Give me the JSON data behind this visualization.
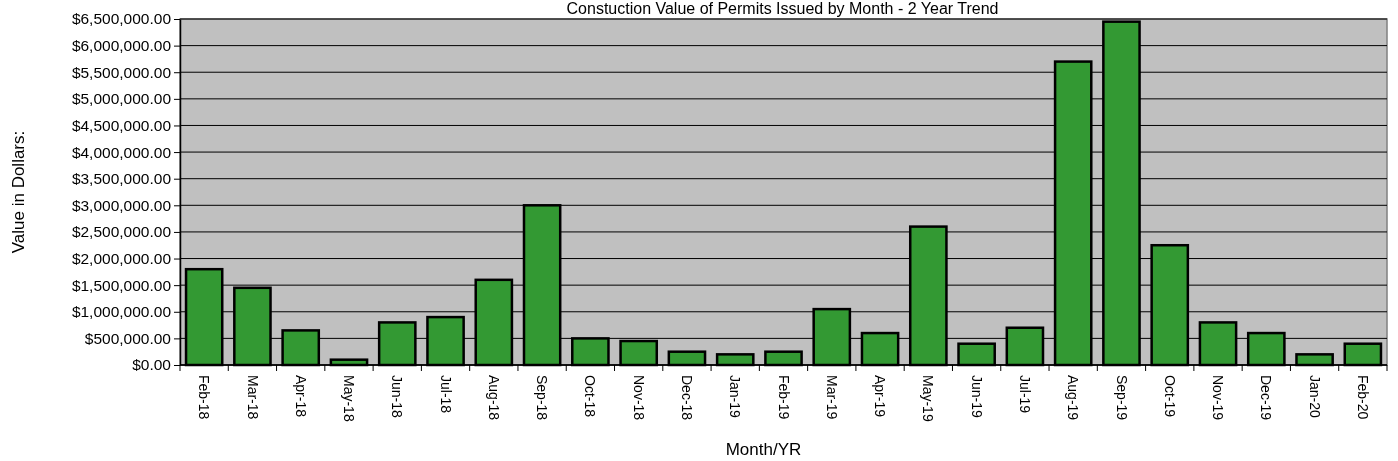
{
  "chart_data": {
    "type": "bar",
    "title": "Constuction Value of Permits Issued by Month - 2 Year Trend",
    "xlabel": "Month/YR",
    "ylabel": "Value in Dollars:",
    "categories": [
      "Feb-18",
      "Mar-18",
      "Apr-18",
      "May-18",
      "Jun-18",
      "Jul-18",
      "Aug-18",
      "Sep-18",
      "Oct-18",
      "Nov-18",
      "Dec-18",
      "Jan-19",
      "Feb-19",
      "Mar-19",
      "Apr-19",
      "May-19",
      "Jun-19",
      "Jul-19",
      "Aug-19",
      "Sep-19",
      "Oct-19",
      "Nov-19",
      "Dec-19",
      "Jan-20",
      "Feb-20"
    ],
    "values": [
      1800000,
      1450000,
      650000,
      100000,
      800000,
      900000,
      1600000,
      3000000,
      500000,
      450000,
      250000,
      200000,
      250000,
      1050000,
      600000,
      2600000,
      400000,
      700000,
      5700000,
      6450000,
      2250000,
      800000,
      600000,
      200000,
      400000
    ],
    "color": "#339933",
    "ylim": [
      0,
      6500000
    ],
    "yticks": [
      {
        "value": 0,
        "label": "$0.00"
      },
      {
        "value": 500000,
        "label": "$500,000.00"
      },
      {
        "value": 1000000,
        "label": "$1,000,000.00"
      },
      {
        "value": 1500000,
        "label": "$1,500,000.00"
      },
      {
        "value": 2000000,
        "label": "$2,000,000.00"
      },
      {
        "value": 2500000,
        "label": "$2,500,000.00"
      },
      {
        "value": 3000000,
        "label": "$3,000,000.00"
      },
      {
        "value": 3500000,
        "label": "$3,500,000.00"
      },
      {
        "value": 4000000,
        "label": "$4,000,000.00"
      },
      {
        "value": 4500000,
        "label": "$4,500,000.00"
      },
      {
        "value": 5000000,
        "label": "$5,000,000.00"
      },
      {
        "value": 5500000,
        "label": "$5,500,000.00"
      },
      {
        "value": 6000000,
        "label": "$6,000,000.00"
      },
      {
        "value": 6500000,
        "label": "$6,500,000.00"
      }
    ],
    "grid": "y"
  }
}
